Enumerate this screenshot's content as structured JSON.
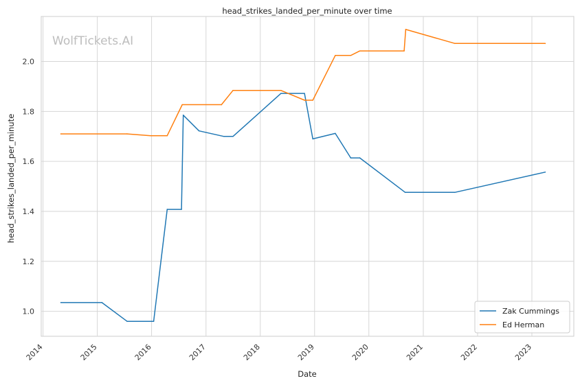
{
  "chart_data": {
    "type": "line",
    "title": "head_strikes_landed_per_minute over time",
    "xlabel": "Date",
    "ylabel": "head_strikes_landed_per_minute",
    "watermark": "WolfTickets.AI",
    "x_ticks": [
      "2014",
      "2015",
      "2016",
      "2017",
      "2018",
      "2019",
      "2020",
      "2021",
      "2022",
      "2023"
    ],
    "y_ticks": [
      "1.0",
      "1.2",
      "1.4",
      "1.6",
      "1.8",
      "2.0"
    ],
    "xlim": [
      "2013-12-20",
      "2023-10-10"
    ],
    "ylim": [
      0.9,
      2.18
    ],
    "grid": true,
    "legend_position": "lower-right",
    "series": [
      {
        "name": "Zak Cummings",
        "color": "#1f77b4",
        "points": [
          [
            "2014-05-01",
            1.035
          ],
          [
            "2015-02-01",
            1.035
          ],
          [
            "2015-07-20",
            0.96
          ],
          [
            "2016-01-15",
            0.96
          ],
          [
            "2016-04-15",
            1.408
          ],
          [
            "2016-07-20",
            1.408
          ],
          [
            "2016-08-01",
            1.785
          ],
          [
            "2016-11-15",
            1.722
          ],
          [
            "2017-05-01",
            1.7
          ],
          [
            "2017-07-01",
            1.7
          ],
          [
            "2018-05-20",
            1.872
          ],
          [
            "2018-10-25",
            1.872
          ],
          [
            "2018-12-20",
            1.69
          ],
          [
            "2019-05-20",
            1.712
          ],
          [
            "2019-09-01",
            1.614
          ],
          [
            "2019-11-01",
            1.614
          ],
          [
            "2020-09-01",
            1.476
          ],
          [
            "2021-08-01",
            1.476
          ],
          [
            "2023-04-01",
            1.557
          ]
        ]
      },
      {
        "name": "Ed Herman",
        "color": "#ff7f0e",
        "points": [
          [
            "2014-05-01",
            1.71
          ],
          [
            "2015-07-20",
            1.71
          ],
          [
            "2015-12-25",
            1.703
          ],
          [
            "2016-04-15",
            1.703
          ],
          [
            "2016-07-25",
            1.827
          ],
          [
            "2017-04-15",
            1.827
          ],
          [
            "2017-07-01",
            1.884
          ],
          [
            "2018-05-20",
            1.884
          ],
          [
            "2018-10-25",
            1.845
          ],
          [
            "2018-12-20",
            1.845
          ],
          [
            "2019-05-20",
            2.024
          ],
          [
            "2019-09-01",
            2.024
          ],
          [
            "2019-11-01",
            2.042
          ],
          [
            "2020-08-25",
            2.042
          ],
          [
            "2020-09-05",
            2.128
          ],
          [
            "2021-08-01",
            2.072
          ],
          [
            "2023-04-01",
            2.072
          ]
        ]
      }
    ]
  }
}
